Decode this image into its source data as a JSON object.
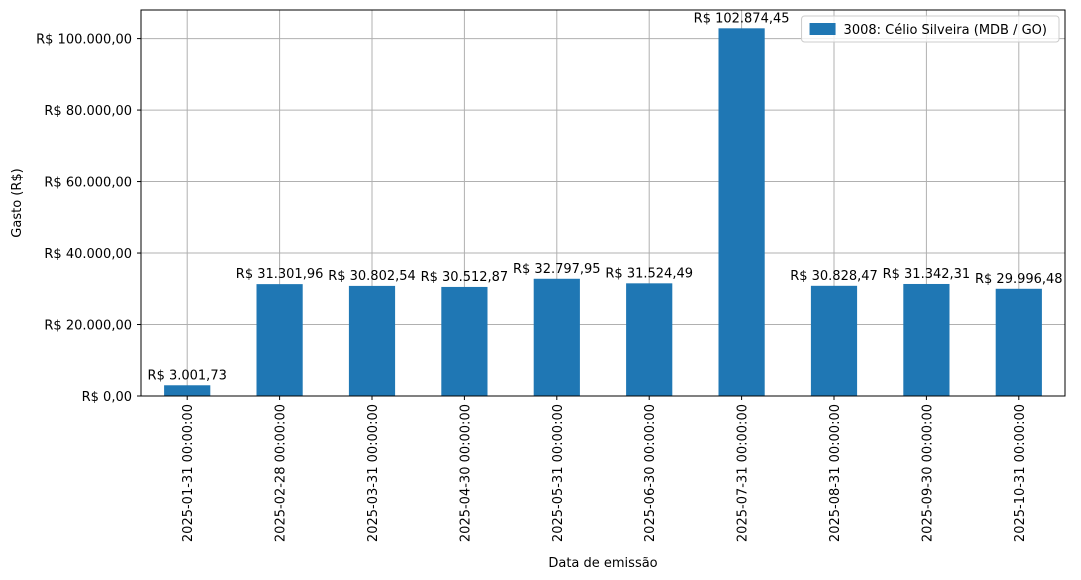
{
  "chart_data": {
    "type": "bar",
    "xlabel": "Data de emissão",
    "ylabel": "Gasto (R$)",
    "ylim": [
      0,
      108000
    ],
    "yticks": [
      0,
      20000,
      40000,
      60000,
      80000,
      100000
    ],
    "ytick_labels": [
      "R$ 0,00",
      "R$ 20.000,00",
      "R$ 40.000,00",
      "R$ 60.000,00",
      "R$ 80.000,00",
      "R$ 100.000,00"
    ],
    "grid": true,
    "legend_position": "top-right",
    "categories": [
      "2025-01-31 00:00:00",
      "2025-02-28 00:00:00",
      "2025-03-31 00:00:00",
      "2025-04-30 00:00:00",
      "2025-05-31 00:00:00",
      "2025-06-30 00:00:00",
      "2025-07-31 00:00:00",
      "2025-08-31 00:00:00",
      "2025-09-30 00:00:00",
      "2025-10-31 00:00:00"
    ],
    "series": [
      {
        "name": "3008: Célio Silveira (MDB / GO)",
        "color": "#1f77b4",
        "values": [
          3001.73,
          31301.96,
          30802.54,
          30512.87,
          32797.95,
          31524.49,
          102874.45,
          30828.47,
          31342.31,
          29996.48
        ],
        "value_labels": [
          "R$ 3.001,73",
          "R$ 31.301,96",
          "R$ 30.802,54",
          "R$ 30.512,87",
          "R$ 32.797,95",
          "R$ 31.524,49",
          "R$ 102.874,45",
          "R$ 30.828,47",
          "R$ 31.342,31",
          "R$ 29.996,48"
        ]
      }
    ]
  }
}
